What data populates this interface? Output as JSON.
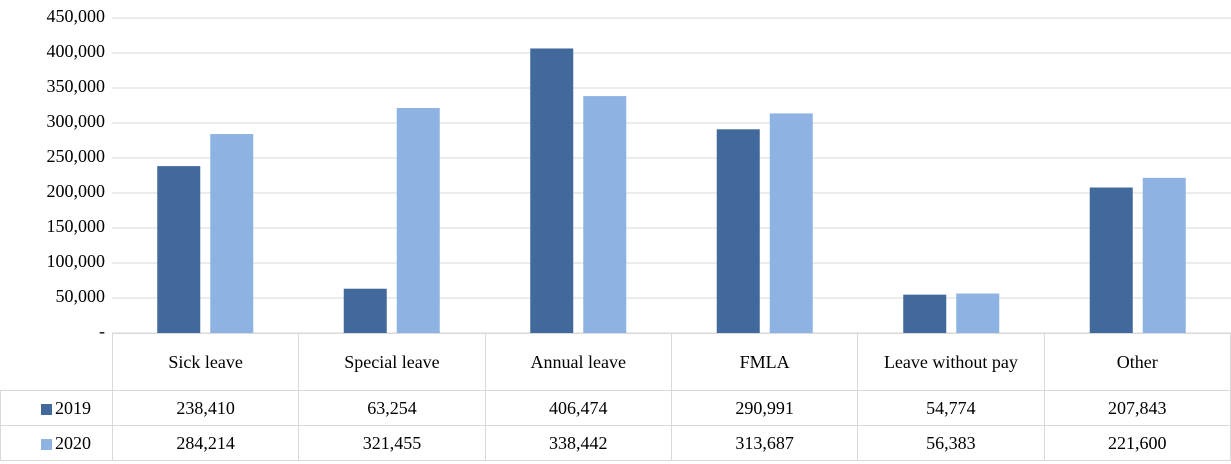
{
  "chart_data": {
    "type": "bar",
    "categories": [
      "Sick leave",
      "Special leave",
      "Annual leave",
      "FMLA",
      "Leave without pay",
      "Other"
    ],
    "series": [
      {
        "name": "2019",
        "color": "#41699c",
        "values": [
          238410,
          63254,
          406474,
          290991,
          54774,
          207843
        ],
        "value_labels": [
          "238,410",
          "63,254",
          "406,474",
          "290,991",
          "54,774",
          "207,843"
        ]
      },
      {
        "name": "2020",
        "color": "#8eb3e2",
        "values": [
          284214,
          321455,
          338442,
          313687,
          56383,
          221600
        ],
        "value_labels": [
          "284,214",
          "321,455",
          "338,442",
          "313,687",
          "56,383",
          "221,600"
        ]
      }
    ],
    "ylim": [
      0,
      450000
    ],
    "yticks": [
      {
        "value": 0,
        "label": "-"
      },
      {
        "value": 50000,
        "label": "50,000"
      },
      {
        "value": 100000,
        "label": "100,000"
      },
      {
        "value": 150000,
        "label": "150,000"
      },
      {
        "value": 200000,
        "label": "200,000"
      },
      {
        "value": 250000,
        "label": "250,000"
      },
      {
        "value": 300000,
        "label": "300,000"
      },
      {
        "value": 350000,
        "label": "350,000"
      },
      {
        "value": 400000,
        "label": "400,000"
      },
      {
        "value": 450000,
        "label": "450,000"
      }
    ],
    "grid": true,
    "data_table": true
  }
}
